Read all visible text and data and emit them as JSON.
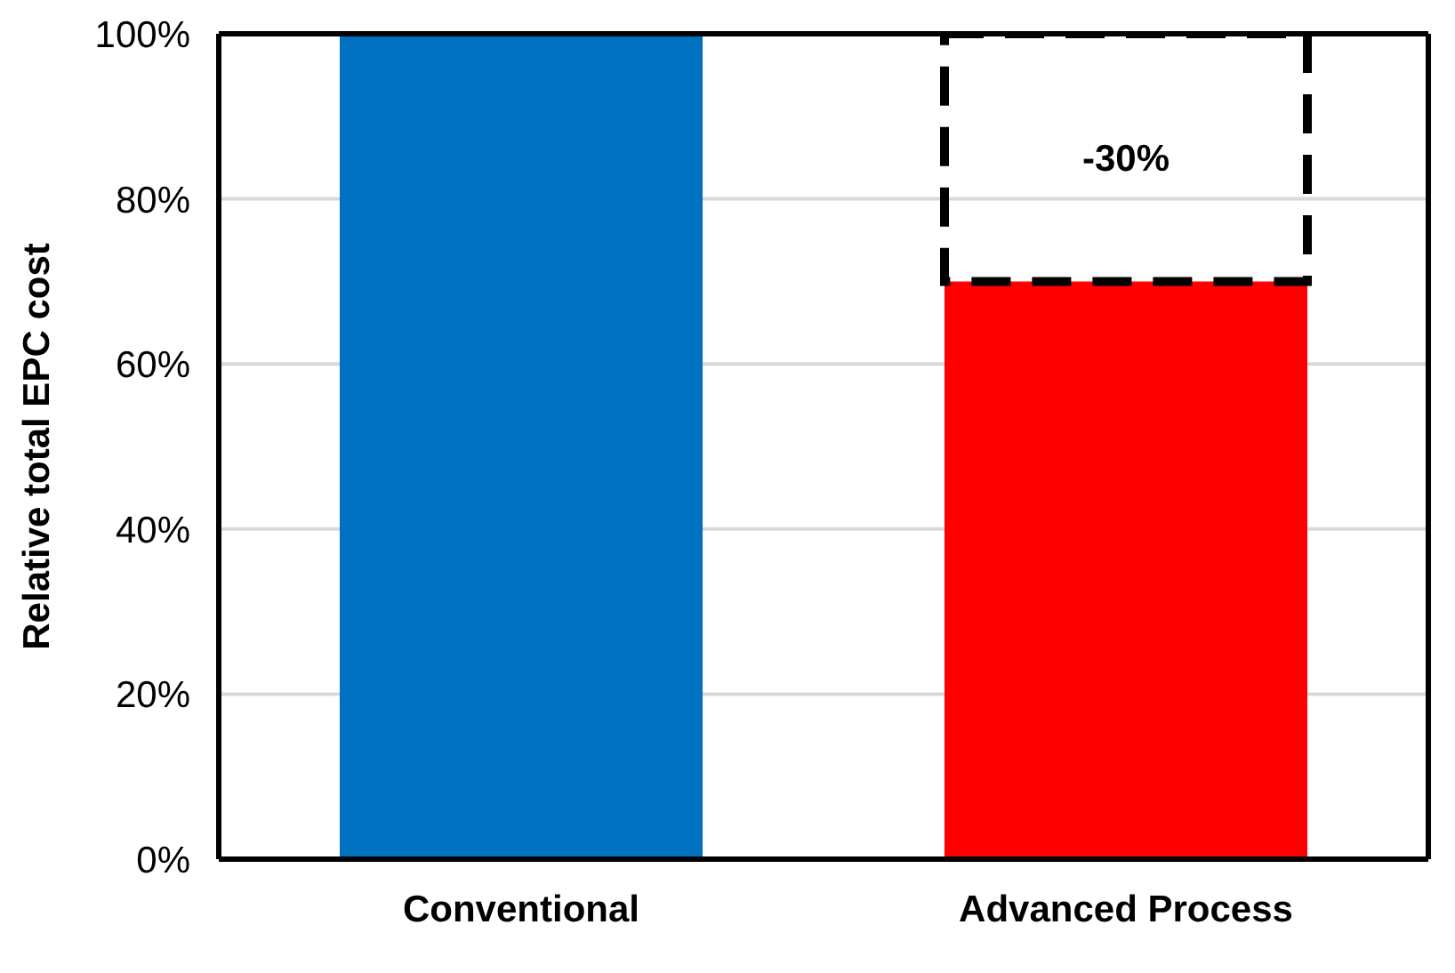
{
  "chart_data": {
    "type": "bar",
    "ylabel": "Relative total EPC cost",
    "categories": [
      "Conventional",
      "Advanced Process"
    ],
    "stacked": true,
    "series": [
      {
        "colors": [
          "#0070c0",
          "#ff0000"
        ],
        "values": [
          100,
          70
        ]
      },
      {
        "color": "#000000",
        "line_style": "dashed",
        "values": [
          null,
          30
        ]
      }
    ],
    "ylim": [
      0,
      100
    ],
    "yticks": [
      {
        "value": 0,
        "label": "0%"
      },
      {
        "value": 20,
        "label": "20%"
      },
      {
        "value": 40,
        "label": "40%"
      },
      {
        "value": 60,
        "label": "60%"
      },
      {
        "value": 80,
        "label": "80%"
      },
      {
        "value": 100,
        "label": "100%"
      }
    ],
    "grid": "y",
    "annotations": [
      "-30%"
    ]
  }
}
